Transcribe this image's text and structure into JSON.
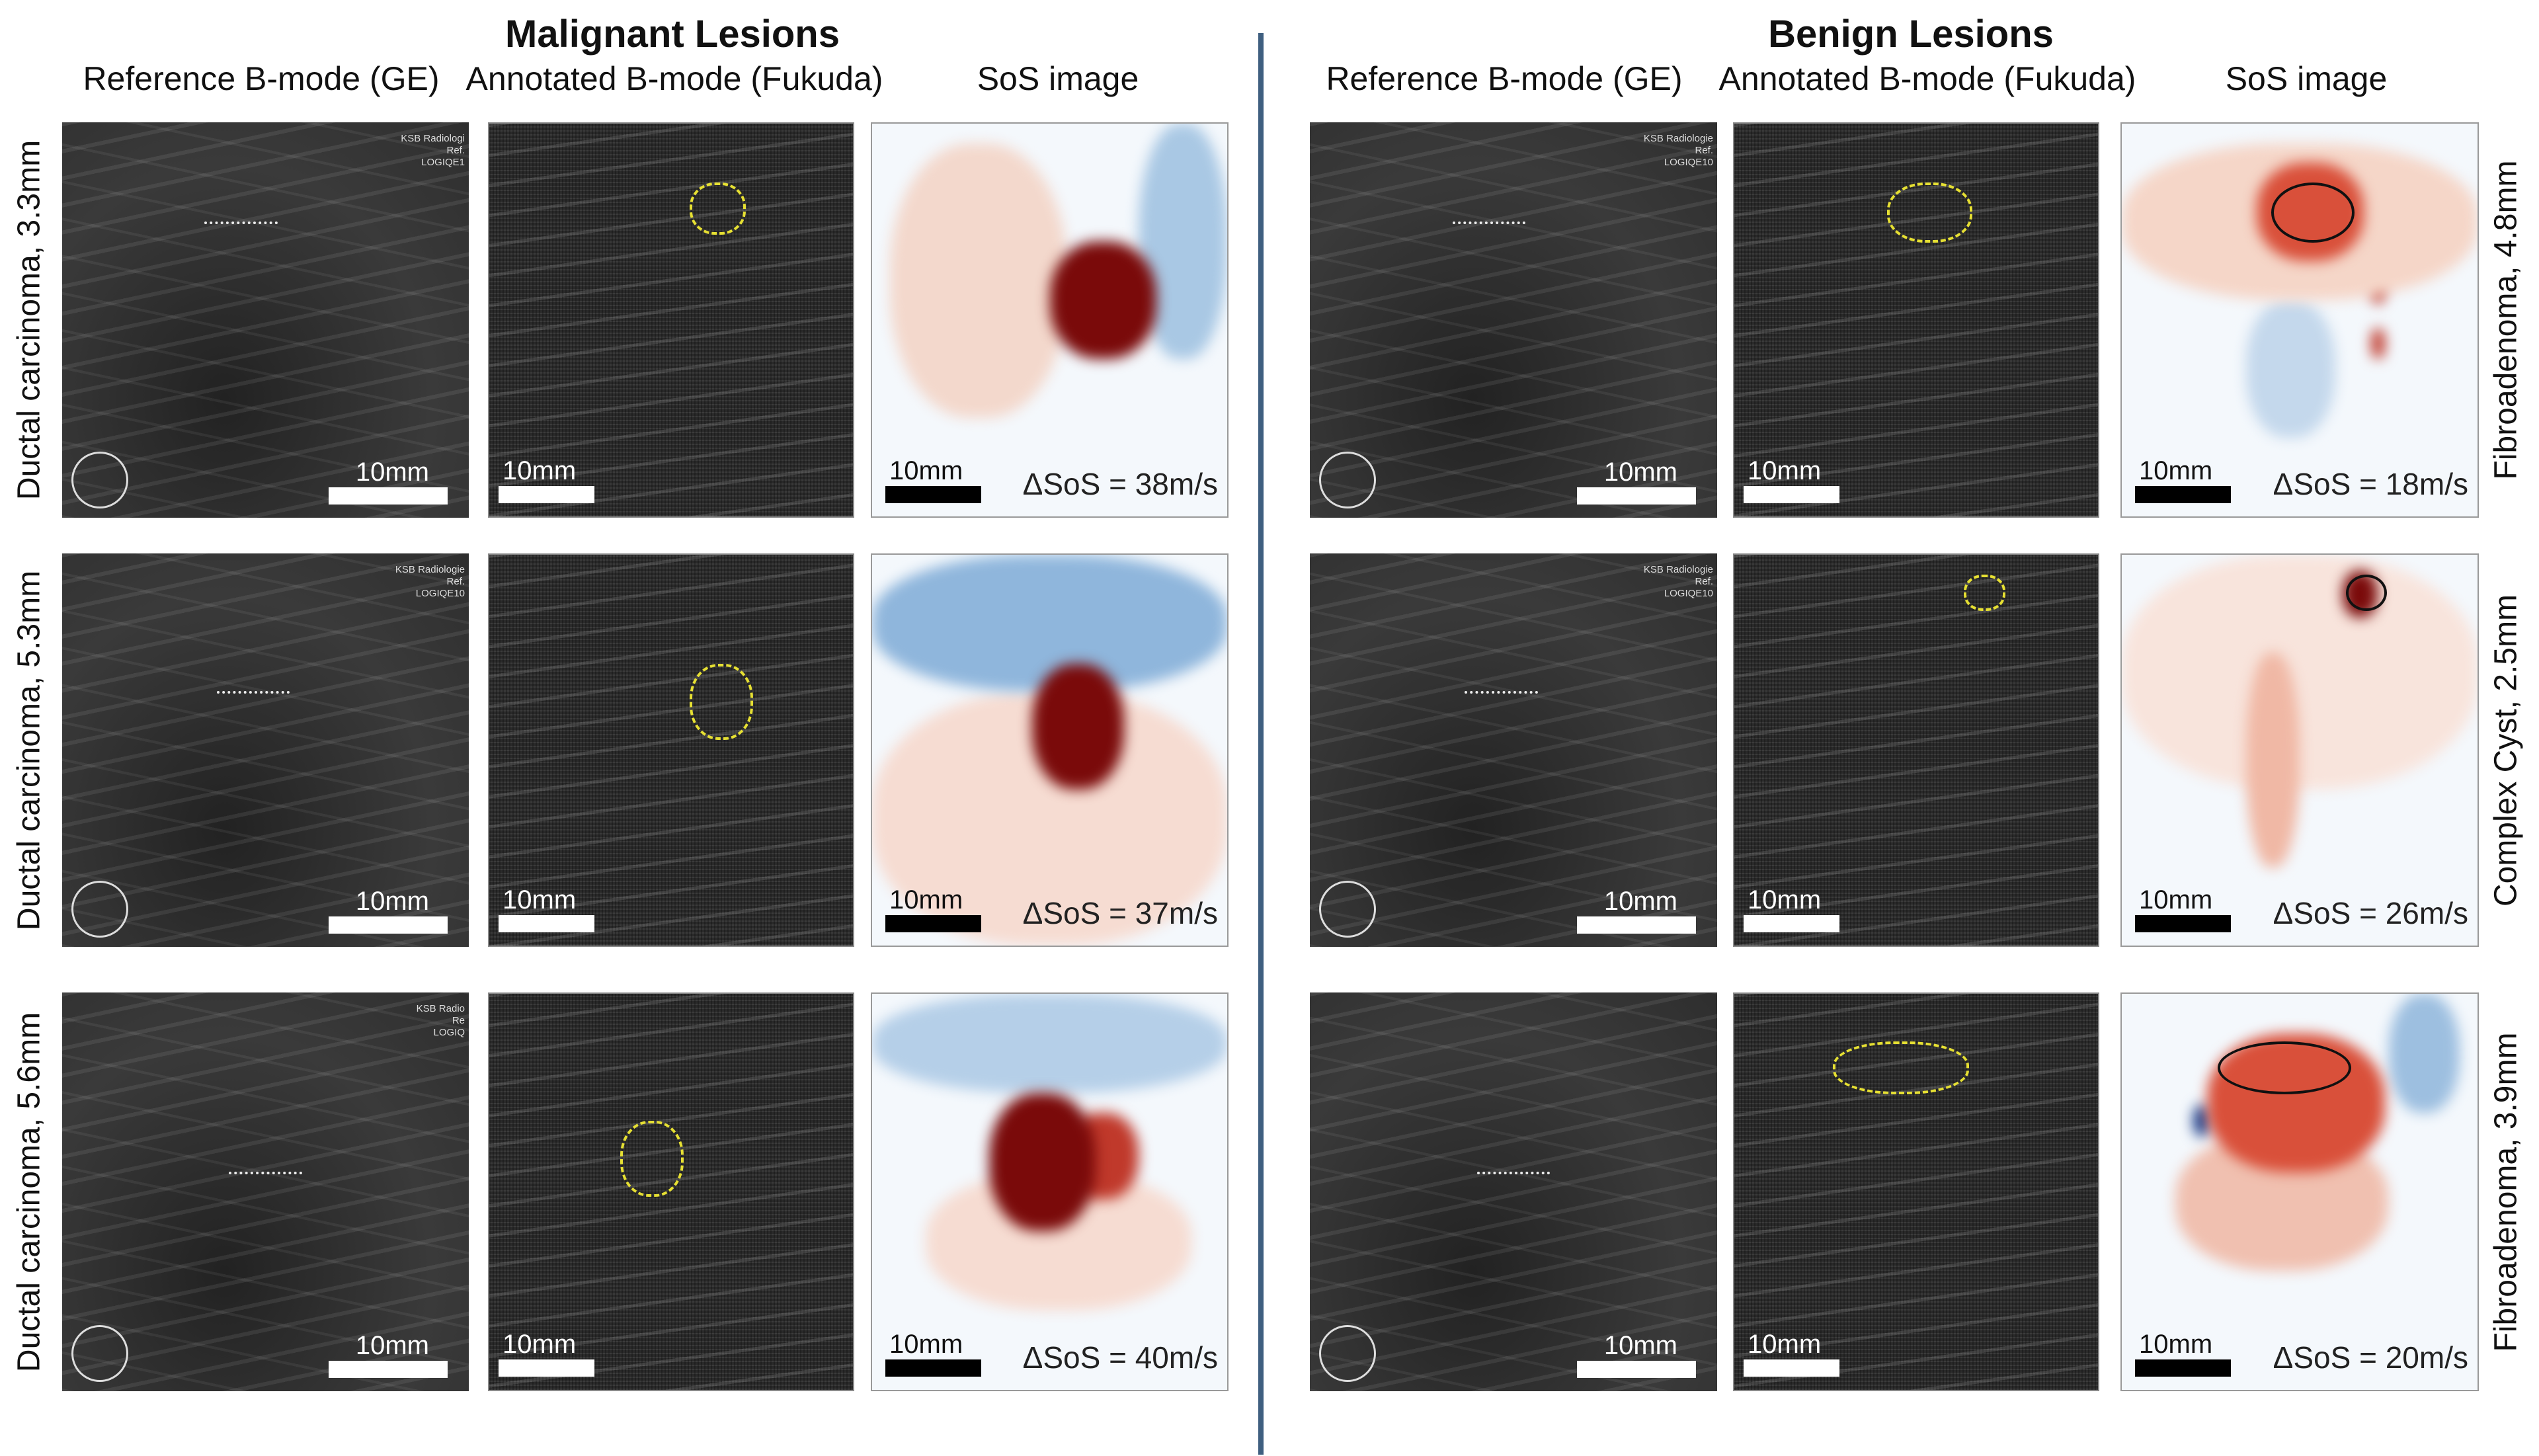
{
  "groups": [
    {
      "title": "Malignant Lesions",
      "columns": [
        "Reference B-mode (GE)",
        "Annotated B-mode (Fukuda)",
        "SoS image"
      ],
      "rows": [
        {
          "label": "Ductal carcinoma, 3.3mm",
          "delta_sos": "ΔSoS = 38m/s",
          "meta": [
            "KSB Radiologi",
            "Ref.",
            "LOGIQE1"
          ]
        },
        {
          "label": "Ductal carcinoma, 5.3mm",
          "delta_sos": "ΔSoS = 37m/s",
          "meta": [
            "KSB Radiologie",
            "Ref.",
            "LOGIQE10"
          ]
        },
        {
          "label": "Ductal carcinoma, 5.6mm",
          "delta_sos": "ΔSoS = 40m/s",
          "meta": [
            "KSB Radio",
            "Re",
            "LOGIQ"
          ]
        }
      ]
    },
    {
      "title": "Benign Lesions",
      "columns": [
        "Reference B-mode (GE)",
        "Annotated B-mode (Fukuda)",
        "SoS image"
      ],
      "rows": [
        {
          "label": "Fibroadenoma, 4.8mm",
          "delta_sos": "ΔSoS = 18m/s",
          "meta": [
            "KSB Radiologie",
            "Ref.",
            "LOGIQE10"
          ]
        },
        {
          "label": "Complex Cyst, 2.5mm",
          "delta_sos": "ΔSoS = 26m/s",
          "meta": [
            "KSB Radiologie",
            "Ref.",
            "LOGIQE10"
          ]
        },
        {
          "label": "Fibroadenoma, 3.9mm",
          "delta_sos": "ΔSoS = 20m/s",
          "meta": []
        }
      ]
    }
  ],
  "scale_label": "10mm",
  "colors": {
    "divider": "#3f5f80",
    "sos_high": "#7a0a0a",
    "sos_mid": "#d9503a",
    "sos_low": "#4a86c0",
    "annotation": "#e6e033"
  }
}
